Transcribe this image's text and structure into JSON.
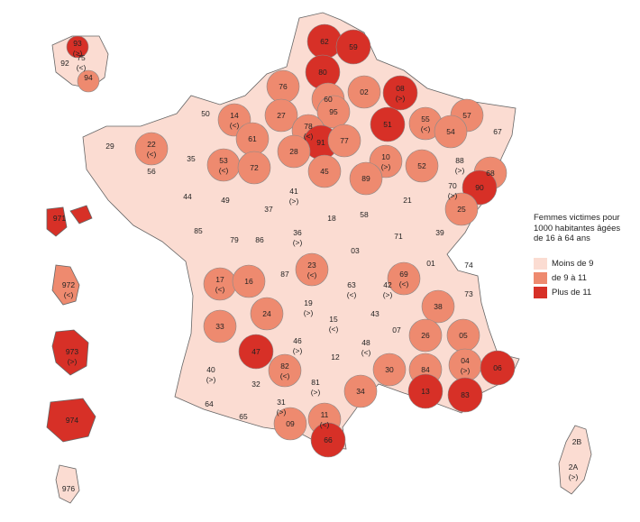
{
  "colors": {
    "low": "#fbdcd2",
    "mid": "#ee8a6f",
    "high": "#d73027"
  },
  "legend": {
    "title_lines": [
      "Femmes victimes pour",
      "1000 habitantes âgées",
      "de 16 à 64 ans"
    ],
    "items": [
      {
        "label": "Moins de 9",
        "class": "low"
      },
      {
        "label": "de 9 à 11",
        "class": "mid"
      },
      {
        "label": "Plus de 11",
        "class": "high"
      }
    ]
  },
  "departments": [
    {
      "code": "62",
      "cls": "high",
      "note": ""
    },
    {
      "code": "59",
      "cls": "high",
      "note": ""
    },
    {
      "code": "80",
      "cls": "high",
      "note": ""
    },
    {
      "code": "76",
      "cls": "mid",
      "note": ""
    },
    {
      "code": "60",
      "cls": "mid",
      "note": ""
    },
    {
      "code": "02",
      "cls": "mid",
      "note": ""
    },
    {
      "code": "08",
      "cls": "high",
      "note": "(>)"
    },
    {
      "code": "50",
      "cls": "low",
      "note": ""
    },
    {
      "code": "14",
      "cls": "mid",
      "note": "(<)"
    },
    {
      "code": "27",
      "cls": "mid",
      "note": ""
    },
    {
      "code": "95",
      "cls": "mid",
      "note": ""
    },
    {
      "code": "78",
      "cls": "mid",
      "note": "(<)"
    },
    {
      "code": "91",
      "cls": "high",
      "note": ""
    },
    {
      "code": "77",
      "cls": "mid",
      "note": ""
    },
    {
      "code": "51",
      "cls": "high",
      "note": ""
    },
    {
      "code": "55",
      "cls": "mid",
      "note": "(<)"
    },
    {
      "code": "57",
      "cls": "mid",
      "note": ""
    },
    {
      "code": "54",
      "cls": "mid",
      "note": ""
    },
    {
      "code": "67",
      "cls": "low",
      "note": ""
    },
    {
      "code": "29",
      "cls": "low",
      "note": ""
    },
    {
      "code": "22",
      "cls": "mid",
      "note": "(<)"
    },
    {
      "code": "35",
      "cls": "low",
      "note": ""
    },
    {
      "code": "56",
      "cls": "low",
      "note": ""
    },
    {
      "code": "61",
      "cls": "mid",
      "note": ""
    },
    {
      "code": "53",
      "cls": "mid",
      "note": "(<)"
    },
    {
      "code": "72",
      "cls": "mid",
      "note": ""
    },
    {
      "code": "28",
      "cls": "mid",
      "note": ""
    },
    {
      "code": "45",
      "cls": "mid",
      "note": ""
    },
    {
      "code": "10",
      "cls": "mid",
      "note": "(>)"
    },
    {
      "code": "52",
      "cls": "mid",
      "note": ""
    },
    {
      "code": "88",
      "cls": "low",
      "note": "(>)"
    },
    {
      "code": "68",
      "cls": "mid",
      "note": ""
    },
    {
      "code": "89",
      "cls": "mid",
      "note": ""
    },
    {
      "code": "44",
      "cls": "low",
      "note": ""
    },
    {
      "code": "49",
      "cls": "low",
      "note": ""
    },
    {
      "code": "41",
      "cls": "low",
      "note": "(>)"
    },
    {
      "code": "37",
      "cls": "low",
      "note": ""
    },
    {
      "code": "21",
      "cls": "low",
      "note": ""
    },
    {
      "code": "70",
      "cls": "low",
      "note": "(>)"
    },
    {
      "code": "90",
      "cls": "high",
      "note": ""
    },
    {
      "code": "25",
      "cls": "mid",
      "note": ""
    },
    {
      "code": "85",
      "cls": "low",
      "note": ""
    },
    {
      "code": "79",
      "cls": "low",
      "note": ""
    },
    {
      "code": "86",
      "cls": "low",
      "note": ""
    },
    {
      "code": "36",
      "cls": "low",
      "note": "(>)"
    },
    {
      "code": "18",
      "cls": "low",
      "note": ""
    },
    {
      "code": "58",
      "cls": "low",
      "note": ""
    },
    {
      "code": "71",
      "cls": "low",
      "note": ""
    },
    {
      "code": "39",
      "cls": "low",
      "note": ""
    },
    {
      "code": "03",
      "cls": "low",
      "note": ""
    },
    {
      "code": "23",
      "cls": "mid",
      "note": "(<)"
    },
    {
      "code": "87",
      "cls": "low",
      "note": ""
    },
    {
      "code": "17",
      "cls": "mid",
      "note": "(<)"
    },
    {
      "code": "16",
      "cls": "mid",
      "note": ""
    },
    {
      "code": "69",
      "cls": "mid",
      "note": "(<)"
    },
    {
      "code": "01",
      "cls": "low",
      "note": ""
    },
    {
      "code": "74",
      "cls": "low",
      "note": ""
    },
    {
      "code": "63",
      "cls": "low",
      "note": "(<)"
    },
    {
      "code": "42",
      "cls": "low",
      "note": "(>)"
    },
    {
      "code": "73",
      "cls": "low",
      "note": ""
    },
    {
      "code": "19",
      "cls": "low",
      "note": "(>)"
    },
    {
      "code": "38",
      "cls": "mid",
      "note": ""
    },
    {
      "code": "24",
      "cls": "mid",
      "note": ""
    },
    {
      "code": "15",
      "cls": "low",
      "note": "(<)"
    },
    {
      "code": "43",
      "cls": "low",
      "note": ""
    },
    {
      "code": "33",
      "cls": "mid",
      "note": ""
    },
    {
      "code": "26",
      "cls": "mid",
      "note": ""
    },
    {
      "code": "05",
      "cls": "mid",
      "note": ""
    },
    {
      "code": "07",
      "cls": "low",
      "note": ""
    },
    {
      "code": "47",
      "cls": "high",
      "note": ""
    },
    {
      "code": "46",
      "cls": "low",
      "note": "(>)"
    },
    {
      "code": "48",
      "cls": "low",
      "note": "(<)"
    },
    {
      "code": "04",
      "cls": "mid",
      "note": "(>)"
    },
    {
      "code": "06",
      "cls": "high",
      "note": ""
    },
    {
      "code": "40",
      "cls": "low",
      "note": "(>)"
    },
    {
      "code": "82",
      "cls": "mid",
      "note": "(<)"
    },
    {
      "code": "12",
      "cls": "low",
      "note": ""
    },
    {
      "code": "84",
      "cls": "mid",
      "note": ""
    },
    {
      "code": "30",
      "cls": "mid",
      "note": ""
    },
    {
      "code": "81",
      "cls": "low",
      "note": "(>)"
    },
    {
      "code": "32",
      "cls": "low",
      "note": ""
    },
    {
      "code": "13",
      "cls": "high",
      "note": ""
    },
    {
      "code": "83",
      "cls": "high",
      "note": ""
    },
    {
      "code": "34",
      "cls": "mid",
      "note": ""
    },
    {
      "code": "31",
      "cls": "low",
      "note": "(>)"
    },
    {
      "code": "64",
      "cls": "low",
      "note": ""
    },
    {
      "code": "65",
      "cls": "low",
      "note": ""
    },
    {
      "code": "11",
      "cls": "mid",
      "note": "(<)"
    },
    {
      "code": "09",
      "cls": "mid",
      "note": ""
    },
    {
      "code": "66",
      "cls": "high",
      "note": ""
    },
    {
      "code": "2B",
      "cls": "low",
      "note": ""
    },
    {
      "code": "2A",
      "cls": "low",
      "note": "(>)"
    },
    {
      "code": "93",
      "cls": "high",
      "note": "(>)"
    },
    {
      "code": "75",
      "cls": "low",
      "note": "(<)"
    },
    {
      "code": "92",
      "cls": "low",
      "note": ""
    },
    {
      "code": "94",
      "cls": "mid",
      "note": ""
    },
    {
      "code": "971",
      "cls": "high",
      "note": ""
    },
    {
      "code": "972",
      "cls": "mid",
      "note": "(<)"
    },
    {
      "code": "973",
      "cls": "high",
      "note": "(>)"
    },
    {
      "code": "974",
      "cls": "high",
      "note": ""
    },
    {
      "code": "976",
      "cls": "low",
      "note": ""
    }
  ]
}
